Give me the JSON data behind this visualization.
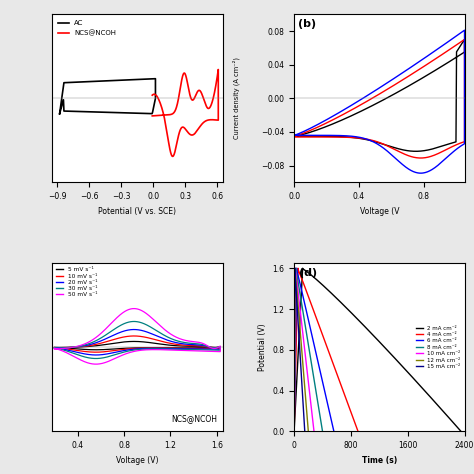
{
  "panel_a": {
    "xlim": [
      -0.95,
      0.65
    ],
    "ylim": [
      -1.2,
      1.2
    ],
    "xlabel": "Potential (V vs. SCE)",
    "legend": [
      "AC",
      "NCS@NCOH"
    ],
    "legend_colors": [
      "black",
      "red"
    ],
    "xticks": [
      -0.9,
      -0.6,
      -0.3,
      0.0,
      0.3,
      0.6
    ]
  },
  "panel_b": {
    "label": "(b)",
    "xlim": [
      0.0,
      1.05
    ],
    "ylim": [
      -0.1,
      0.1
    ],
    "xlabel": "Voltage (V",
    "ylabel": "Current density (A cm⁻²)",
    "curve_colors": [
      "black",
      "red",
      "blue"
    ],
    "yticks": [
      -0.08,
      -0.04,
      0.0,
      0.04,
      0.08
    ]
  },
  "panel_c": {
    "xlim": [
      0.18,
      1.65
    ],
    "ylim": [
      -1.5,
      1.5
    ],
    "xlabel": "Voltage (V)",
    "annotation": "NCS@NCOH",
    "legend_labels": [
      "5 mV s⁻¹",
      "10 mV s⁻¹",
      "20 mV s⁻¹",
      "30 mV s⁻¹",
      "50 mV s⁻¹"
    ],
    "legend_colors": [
      "black",
      "red",
      "blue",
      "teal",
      "magenta"
    ],
    "xticks": [
      0.4,
      0.8,
      1.2,
      1.6
    ]
  },
  "panel_d": {
    "label": "(d)",
    "xlim": [
      0,
      2400
    ],
    "ylim": [
      0.0,
      1.65
    ],
    "xlabel": "Time (s)",
    "ylabel": "Potential (V)",
    "legend_labels": [
      "2 mA cm⁻²",
      "4 mA cm⁻²",
      "6 mA cm⁻²",
      "8 mA cm⁻²",
      "10 mA cm⁻²",
      "12 mA cm⁻²",
      "15 mA cm⁻²"
    ],
    "legend_colors": [
      "black",
      "red",
      "blue",
      "teal",
      "magenta",
      "olive",
      "darkblue"
    ],
    "discharge_ends": [
      2350,
      900,
      560,
      400,
      280,
      200,
      150
    ],
    "charge_ends": [
      120,
      55,
      35,
      25,
      18,
      14,
      10
    ],
    "yticks": [
      0.0,
      0.4,
      0.8,
      1.2,
      1.6
    ],
    "xticks": [
      0,
      800,
      1600,
      2400
    ]
  },
  "bg_color": "#e8e8e8",
  "plot_bg": "white"
}
